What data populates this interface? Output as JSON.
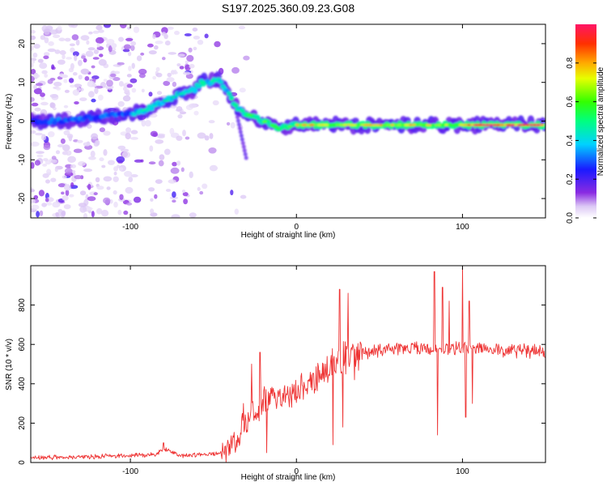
{
  "chart_data": [
    {
      "type": "heatmap",
      "title": "S197.2025.360.09.23.G08",
      "xlabel": "Height of straight line (km)",
      "ylabel": "Frequency (Hz)",
      "xlim": [
        -160,
        150
      ],
      "ylim": [
        -25,
        25
      ],
      "xticks": [
        "-100",
        "0",
        "100"
      ],
      "yticks": [
        "-20",
        "-10",
        "0",
        "10",
        "20"
      ],
      "colorbar": {
        "label": "Normalized spectral amplitude",
        "range": [
          0,
          1
        ],
        "ticks": [
          "0.0",
          "0.2",
          "0.4",
          "0.6",
          "0.8"
        ]
      },
      "ridge": {
        "x": [
          -160,
          -140,
          -120,
          -100,
          -90,
          -80,
          -70,
          -62,
          -57,
          -52,
          -47,
          -44,
          -41,
          -38,
          -35,
          -30,
          -25,
          -20,
          -15,
          -10,
          0,
          50,
          100,
          150
        ],
        "y": [
          0,
          0,
          1,
          2,
          3,
          5,
          7,
          8,
          10,
          10,
          11,
          9,
          7,
          5,
          3,
          2,
          1,
          0,
          -1,
          -2,
          -1,
          -1,
          -1,
          -1
        ]
      }
    },
    {
      "type": "line",
      "xlabel": "Height of straight line (km)",
      "ylabel": "SNR (10 * v/v)",
      "xlim": [
        -160,
        150
      ],
      "ylim": [
        0,
        1000
      ],
      "xticks": [
        "-100",
        "0",
        "100"
      ],
      "yticks": [
        "0",
        "200",
        "400",
        "600",
        "800"
      ],
      "color": "#ee3333",
      "trend": {
        "x": [
          -160,
          -120,
          -85,
          -80,
          -70,
          -55,
          -45,
          -38,
          -33,
          -25,
          -20,
          -15,
          -8,
          0,
          10,
          20,
          25,
          35,
          50,
          80,
          100,
          150
        ],
        "y": [
          25,
          30,
          40,
          70,
          35,
          40,
          50,
          90,
          180,
          250,
          300,
          320,
          340,
          360,
          420,
          480,
          520,
          560,
          570,
          580,
          580,
          565
        ]
      },
      "spikes": {
        "x": [
          -80,
          -32,
          -27,
          -22,
          -18,
          22,
          26,
          28,
          31,
          35,
          83,
          85,
          88,
          92,
          100,
          102,
          104,
          106
        ],
        "y": [
          100,
          300,
          500,
          560,
          50,
          90,
          880,
          180,
          860,
          420,
          970,
          140,
          890,
          820,
          1000,
          230,
          820,
          300
        ]
      }
    }
  ]
}
